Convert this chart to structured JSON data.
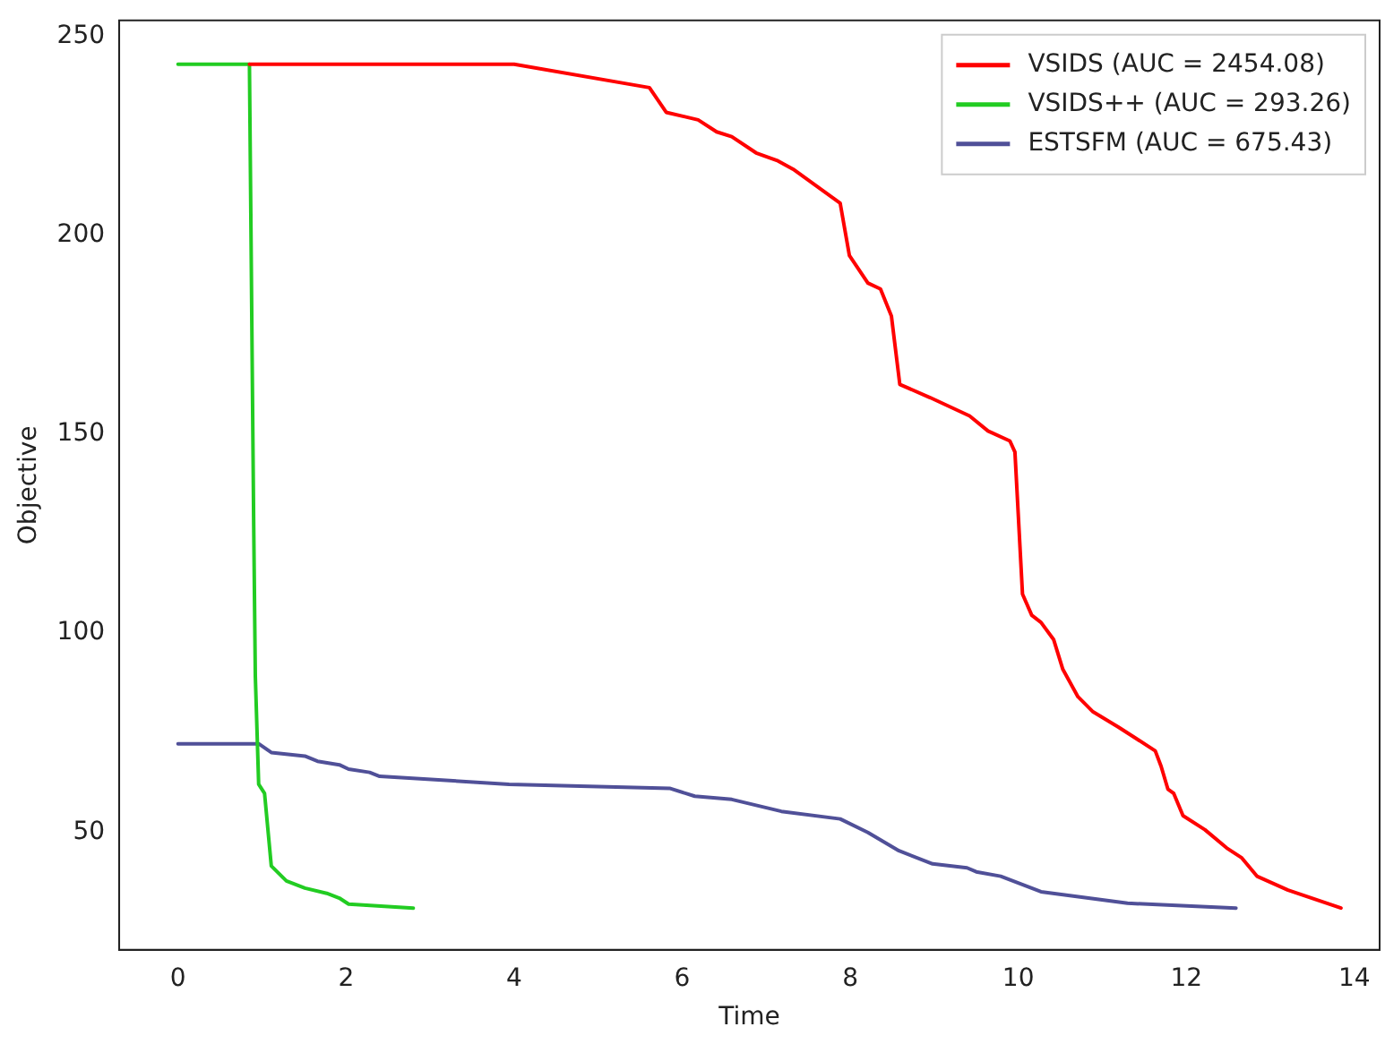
{
  "chart_data": {
    "type": "line",
    "xlabel": "Time",
    "ylabel": "Objective",
    "xlim": [
      -0.7,
      14.3
    ],
    "ylim": [
      20.4,
      254
    ],
    "xticks": [
      0,
      2,
      4,
      6,
      8,
      10,
      12,
      14
    ],
    "yticks": [
      50,
      100,
      150,
      200,
      250
    ],
    "grid": false,
    "legend": "top right",
    "marker": "none",
    "line_style": "solid",
    "series": [
      {
        "name": "VSIDS (AUC = 2454.08)",
        "color": "#ff0000",
        "x": [
          0.85,
          4.0,
          5.61,
          5.81,
          6.19,
          6.41,
          6.59,
          6.88,
          7.14,
          7.32,
          7.88,
          7.99,
          8.21,
          8.36,
          8.49,
          8.59,
          8.95,
          9.42,
          9.64,
          9.9,
          9.96,
          10.05,
          10.16,
          10.27,
          10.42,
          10.53,
          10.71,
          10.89,
          11.19,
          11.41,
          11.63,
          11.7,
          11.78,
          11.85,
          11.96,
          12.22,
          12.48,
          12.66,
          12.84,
          13.21,
          13.84
        ],
        "values": [
          243,
          243,
          237.1,
          230.9,
          229,
          226,
          224.8,
          220.7,
          218.7,
          216.6,
          208.1,
          194.9,
          188,
          186.5,
          179.7,
          162.5,
          159.2,
          154.6,
          150.8,
          148.3,
          145.5,
          109.8,
          104.5,
          102.7,
          98.4,
          90.9,
          84,
          80.2,
          76.4,
          73.4,
          70.4,
          66.5,
          60.8,
          59.7,
          54.1,
          50.6,
          46,
          43.5,
          38.9,
          35.4,
          30.9
        ]
      },
      {
        "name": "VSIDS++ (AUC = 293.26)",
        "color": "#22cc22",
        "x": [
          0,
          0.85,
          0.9,
          0.92,
          0.96,
          1.03,
          1.11,
          1.29,
          1.51,
          1.77,
          1.92,
          2.03,
          2.8
        ],
        "values": [
          243,
          243,
          128.8,
          89.3,
          62,
          59.7,
          41.5,
          37.7,
          35.9,
          34.6,
          33.4,
          31.9,
          30.9
        ]
      },
      {
        "name": "ESTSFM (AUC = 675.43)",
        "color": "#505098",
        "x": [
          0,
          0.96,
          1.11,
          1.51,
          1.66,
          1.92,
          2.03,
          2.28,
          2.4,
          3.94,
          5.85,
          6.15,
          6.59,
          7.18,
          7.88,
          8.21,
          8.58,
          8.98,
          9.39,
          9.5,
          9.79,
          10.27,
          11.3,
          12.59
        ],
        "values": [
          72.2,
          72.2,
          70,
          69.1,
          67.8,
          66.9,
          65.8,
          65,
          64,
          62,
          61,
          59,
          58.2,
          55.2,
          53.3,
          49.9,
          45.3,
          42,
          41,
          40,
          38.9,
          35,
          32.1,
          30.9
        ]
      }
    ]
  }
}
